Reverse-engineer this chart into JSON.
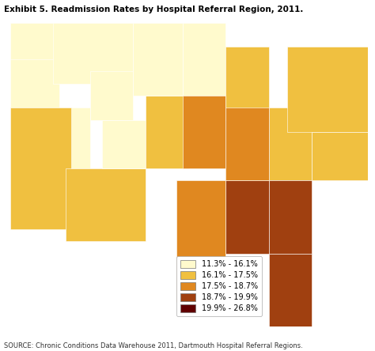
{
  "title": "Exhibit 5. Readmission Rates by Hospital Referral Region, 2011.",
  "source_text": "SOURCE: Chronic Conditions Data Warehouse 2011, Dartmouth Hospital Referral Regions.",
  "legend_entries": [
    {
      "label": "11.3% - 16.1%",
      "color": "#FFFACD"
    },
    {
      "label": "16.1% - 17.5%",
      "color": "#F0C040"
    },
    {
      "label": "17.5% - 18.7%",
      "color": "#E08820"
    },
    {
      "label": "18.7% - 19.9%",
      "color": "#A04010"
    },
    {
      "label": "19.9% - 26.8%",
      "color": "#600000"
    }
  ],
  "background_color": "#FFFFFF",
  "water_color": "#DDEEFF",
  "title_fontsize": 7.5,
  "source_fontsize": 6.0,
  "legend_fontsize": 7.0,
  "figsize": [
    4.74,
    4.44
  ],
  "dpi": 100,
  "map_extent": [
    -125,
    -66,
    24,
    50
  ]
}
